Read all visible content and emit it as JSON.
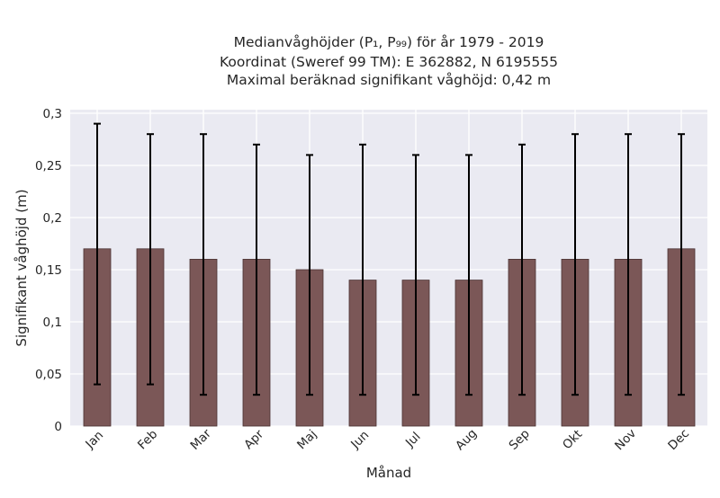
{
  "chart_data": {
    "type": "bar",
    "title_lines": [
      "Medianvåghöjder (P₁, P₉₉) för år 1979 - 2019",
      "Koordinat (Sweref 99 TM): E 362882, N 6195555",
      "Maximal beräknad signifikant våghöjd: 0,42 m"
    ],
    "xlabel": "Månad",
    "ylabel": "Signifikant våghöjd (m)",
    "categories": [
      "Jan",
      "Feb",
      "Mar",
      "Apr",
      "Maj",
      "Jun",
      "Jul",
      "Aug",
      "Sep",
      "Okt",
      "Nov",
      "Dec"
    ],
    "values": [
      0.17,
      0.17,
      0.16,
      0.16,
      0.15,
      0.14,
      0.14,
      0.14,
      0.16,
      0.16,
      0.16,
      0.17
    ],
    "err_low": [
      0.04,
      0.04,
      0.03,
      0.03,
      0.03,
      0.03,
      0.03,
      0.03,
      0.03,
      0.03,
      0.03,
      0.03
    ],
    "err_high": [
      0.29,
      0.28,
      0.28,
      0.27,
      0.26,
      0.27,
      0.26,
      0.26,
      0.27,
      0.28,
      0.28,
      0.28
    ],
    "ylim": [
      0,
      0.3
    ],
    "yticks": [
      0,
      0.05,
      0.1,
      0.15,
      0.2,
      0.25,
      0.3
    ],
    "ytick_labels": [
      "0",
      "0,05",
      "0,1",
      "0,15",
      "0,2",
      "0,25",
      "0,3"
    ],
    "grid": true,
    "colors": {
      "bar_fill": "#7b5757",
      "bar_edge": "#4a3232",
      "error_bar": "#000000",
      "plot_background": "#eaeaf2",
      "grid": "#ffffff"
    }
  }
}
